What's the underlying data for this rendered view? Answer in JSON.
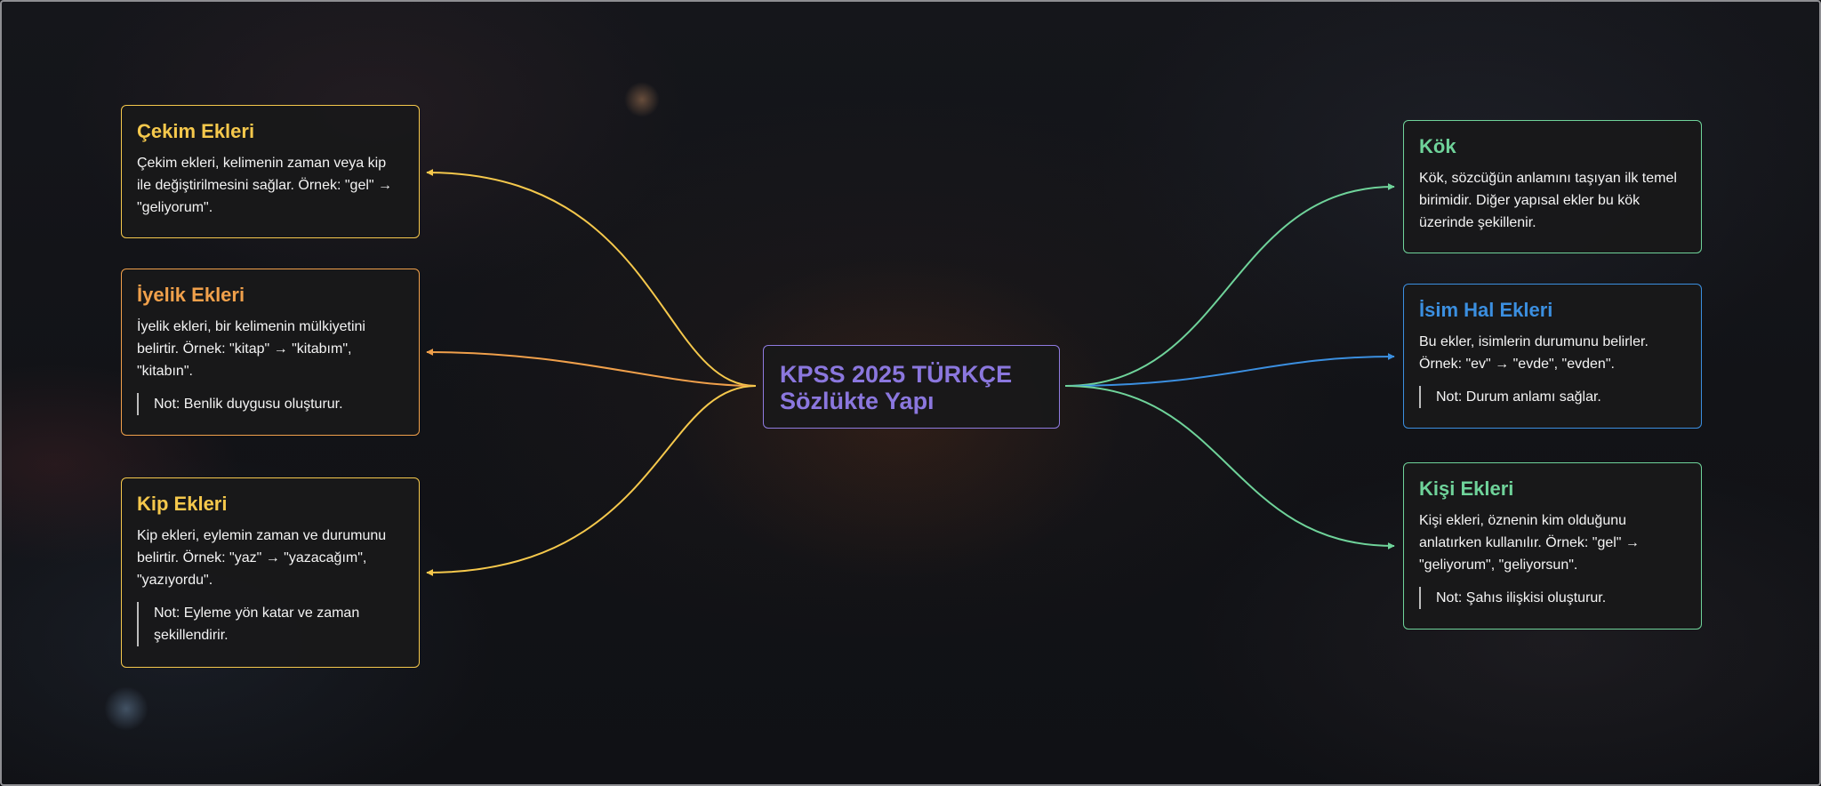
{
  "center": {
    "line1": "KPSS 2025 TÜRKÇE",
    "line2": "Sözlükte Yapı"
  },
  "colors": {
    "yellow": "#f5c84c",
    "orange": "#f0a04b",
    "green": "#6fd39a",
    "blue": "#3b8fe0",
    "purple": "#8b77de"
  },
  "nodes": {
    "cekim": {
      "title": "Çekim Ekleri",
      "text": "Çekim ekleri, kelimenin zaman veya kip ile değiştirilmesini sağlar. Örnek: \"gel\" → \"geliyorum\"."
    },
    "iyelik": {
      "title": "İyelik Ekleri",
      "text": "İyelik ekleri, bir kelimenin mülkiyetini belirtir. Örnek: \"kitap\" → \"kitabım\", \"kitabın\".",
      "note": "Not: Benlik duygusu oluşturur."
    },
    "kip": {
      "title": "Kip Ekleri",
      "text": "Kip ekleri, eylemin zaman ve durumunu belirtir. Örnek: \"yaz\" → \"yazacağım\", \"yazıyordu\".",
      "note": "Not: Eyleme yön katar ve zaman şekillendirir."
    },
    "kok": {
      "title": "Kök",
      "text": "Kök, sözcüğün anlamını taşıyan ilk temel birimidir. Diğer yapısal ekler bu kök üzerinde şekillenir."
    },
    "isimhal": {
      "title": "İsim Hal Ekleri",
      "text": "Bu ekler, isimlerin durumunu belirler. Örnek: \"ev\" → \"evde\", \"evden\".",
      "note": "Not: Durum anlamı sağlar."
    },
    "kisi": {
      "title": "Kişi Ekleri",
      "text": "Kişi ekleri, öznenin kim olduğunu anlatırken kullanılır. Örnek: \"gel\" → \"geliyorum\", \"geliyorsun\".",
      "note": "Not: Şahıs ilişkisi oluşturur."
    }
  }
}
